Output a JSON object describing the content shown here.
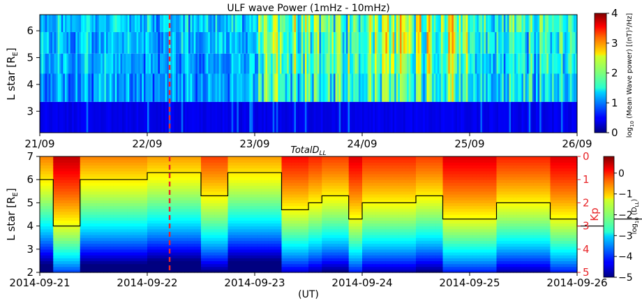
{
  "chart_data": [
    {
      "type": "heatmap",
      "title": "ULF wave Power (1mHz - 10mHz)",
      "ylabel": "L star [R_E]",
      "ylim": [
        2.2,
        6.6
      ],
      "yticks": [
        3,
        4,
        5,
        6
      ],
      "xlim": [
        "2014-09-21",
        "2014-09-26"
      ],
      "xticks": [
        "21/09",
        "22/09",
        "23/09",
        "24/09",
        "25/09",
        "26/09"
      ],
      "colorbar": {
        "label": "log10 (Mean Wave power) [(nT)²/Hz]",
        "range": [
          0,
          4
        ],
        "ticks": [
          0,
          1,
          2,
          3,
          4
        ]
      },
      "l_rows": [
        {
          "l_min": 2.2,
          "l_max": 3.35,
          "base": 0.35,
          "amp": 0.15
        },
        {
          "l_min": 3.35,
          "l_max": 4.4,
          "base": 0.75,
          "amp": 1.0
        },
        {
          "l_min": 4.4,
          "l_max": 5.15,
          "base": 0.8,
          "amp": 1.05
        },
        {
          "l_min": 5.15,
          "l_max": 5.95,
          "base": 0.85,
          "amp": 1.1
        },
        {
          "l_min": 5.95,
          "l_max": 6.6,
          "base": 0.9,
          "amp": 1.1
        }
      ],
      "daily_activity": [
        0.35,
        0.3,
        0.75,
        0.95,
        0.55,
        0.8
      ],
      "marker_line": {
        "x": "2014-09-22 05:00",
        "color": "#e8262a",
        "style": "dashed"
      }
    },
    {
      "type": "heatmap",
      "title": "TotalD_LL",
      "ylabel": "L star [R_E]",
      "ylim": [
        2,
        7
      ],
      "yticks": [
        2,
        3,
        4,
        5,
        6,
        7
      ],
      "xlim": [
        "2014-09-21",
        "2014-09-26"
      ],
      "xticks": [
        "2014-09-21",
        "2014-09-22",
        "2014-09-23",
        "2014-09-24",
        "2014-09-25",
        "2014-09-26"
      ],
      "xlabel": "(UT)",
      "colorbar": {
        "label": "log10 (D_LL)",
        "range": [
          -5,
          0.8
        ],
        "ticks": [
          0,
          -1,
          -2,
          -3,
          -4,
          -5
        ]
      },
      "dll_model": {
        "a": 8.6,
        "b": 0.85,
        "c": -4.8
      },
      "right_axis": {
        "label": "Kp",
        "color": "#e8262a",
        "range": [
          0,
          5
        ],
        "ticks": [
          0,
          1,
          2,
          3,
          4,
          5
        ],
        "inverted": true
      },
      "kp_step_series": {
        "name": "Kp",
        "x_hours": [
          0,
          3,
          9,
          24,
          36,
          42,
          54,
          60,
          63,
          69,
          72,
          78,
          84,
          90,
          102,
          108,
          114,
          120,
          126,
          138,
          144,
          147,
          150,
          153,
          156,
          159,
          162,
          165,
          168,
          171,
          180,
          183,
          186,
          189,
          192,
          198,
          204,
          210,
          216,
          222,
          228,
          234,
          240
        ],
        "kp": [
          1.0,
          3.0,
          1.0,
          0.7,
          1.7,
          0.7,
          2.3,
          2.0,
          1.7,
          2.7,
          2.0,
          2.0,
          1.7,
          2.7,
          2.0,
          2.0,
          2.7,
          3.0,
          2.7,
          2.0,
          3.7,
          3.7,
          3.7,
          2.7,
          4.0,
          3.7,
          3.3,
          3.0,
          4.0,
          3.7,
          2.3,
          2.3,
          2.3,
          2.0,
          3.0,
          2.0,
          1.7,
          2.3,
          3.0,
          3.0,
          3.0,
          3.0,
          3.0
        ]
      },
      "marker_line": {
        "x": "2014-09-22 05:00",
        "color": "#e8262a",
        "style": "dashed"
      }
    }
  ]
}
